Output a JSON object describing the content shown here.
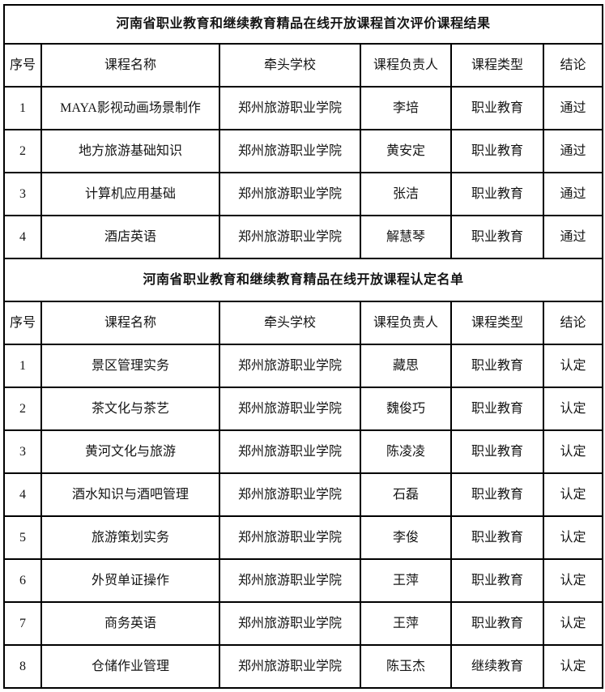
{
  "page": {
    "background_color": "#ffffff",
    "border_color": "#000000",
    "text_color": "#151515"
  },
  "columns": [
    "序号",
    "课程名称",
    "牵头学校",
    "课程负责人",
    "课程类型",
    "结论"
  ],
  "sections": [
    {
      "title": "河南省职业教育和继续教育精品在线开放课程首次评价课程结果",
      "rows": [
        [
          "1",
          "MAYA影视动画场景制作",
          "郑州旅游职业学院",
          "李培",
          "职业教育",
          "通过"
        ],
        [
          "2",
          "地方旅游基础知识",
          "郑州旅游职业学院",
          "黄安定",
          "职业教育",
          "通过"
        ],
        [
          "3",
          "计算机应用基础",
          "郑州旅游职业学院",
          "张洁",
          "职业教育",
          "通过"
        ],
        [
          "4",
          "酒店英语",
          "郑州旅游职业学院",
          "解慧琴",
          "职业教育",
          "通过"
        ]
      ]
    },
    {
      "title": "河南省职业教育和继续教育精品在线开放课程认定名单",
      "rows": [
        [
          "1",
          "景区管理实务",
          "郑州旅游职业学院",
          "藏思",
          "职业教育",
          "认定"
        ],
        [
          "2",
          "茶文化与茶艺",
          "郑州旅游职业学院",
          "魏俊巧",
          "职业教育",
          "认定"
        ],
        [
          "3",
          "黄河文化与旅游",
          "郑州旅游职业学院",
          "陈凌凌",
          "职业教育",
          "认定"
        ],
        [
          "4",
          "酒水知识与酒吧管理",
          "郑州旅游职业学院",
          "石磊",
          "职业教育",
          "认定"
        ],
        [
          "5",
          "旅游策划实务",
          "郑州旅游职业学院",
          "李俊",
          "职业教育",
          "认定"
        ],
        [
          "6",
          "外贸单证操作",
          "郑州旅游职业学院",
          "王萍",
          "职业教育",
          "认定"
        ],
        [
          "7",
          "商务英语",
          "郑州旅游职业学院",
          "王萍",
          "职业教育",
          "认定"
        ],
        [
          "8",
          "仓储作业管理",
          "郑州旅游职业学院",
          "陈玉杰",
          "继续教育",
          "认定"
        ]
      ]
    }
  ]
}
